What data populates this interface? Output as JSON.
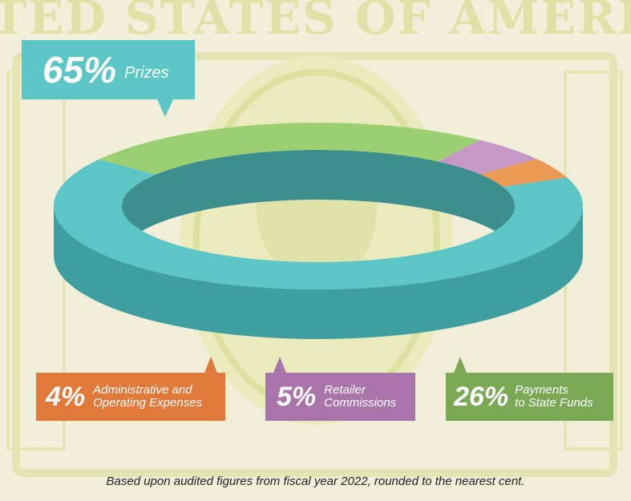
{
  "watermark": "TED STATES OF AMERIC",
  "footnote": "Based upon audited figures from fiscal year 2022, rounded to the nearest cent.",
  "chart_data": {
    "type": "pie",
    "title": "",
    "slices": [
      {
        "pct_label": "65%",
        "label": "Prizes",
        "value": 65,
        "color": "#5cc5c6",
        "side_color": "#3f9e9f"
      },
      {
        "pct_label": "26%",
        "label": "Payments to State Funds",
        "value": 26,
        "color": "#9ccf72",
        "side_color": "#7aa854"
      },
      {
        "pct_label": "5%",
        "label": "Retailer Commissions",
        "value": 5,
        "color": "#c598c6",
        "side_color": "#96668f"
      },
      {
        "pct_label": "4%",
        "label": "Administrative and Operating Expenses",
        "value": 4,
        "color": "#ea9a55",
        "side_color": "#a45e2e"
      }
    ]
  },
  "callouts": {
    "prizes": {
      "pct": "65%",
      "label": "Prizes",
      "color": "#5cc5c6"
    },
    "admin": {
      "pct": "4%",
      "line1": "Administrative and",
      "line2": "Operating Expenses",
      "color": "#e0793a"
    },
    "retail": {
      "pct": "5%",
      "line1": "Retailer",
      "line2": "Commissions",
      "color": "#a874a9"
    },
    "state": {
      "pct": "26%",
      "line1": "Payments",
      "line2": "to State Funds",
      "color": "#7aa854"
    }
  }
}
